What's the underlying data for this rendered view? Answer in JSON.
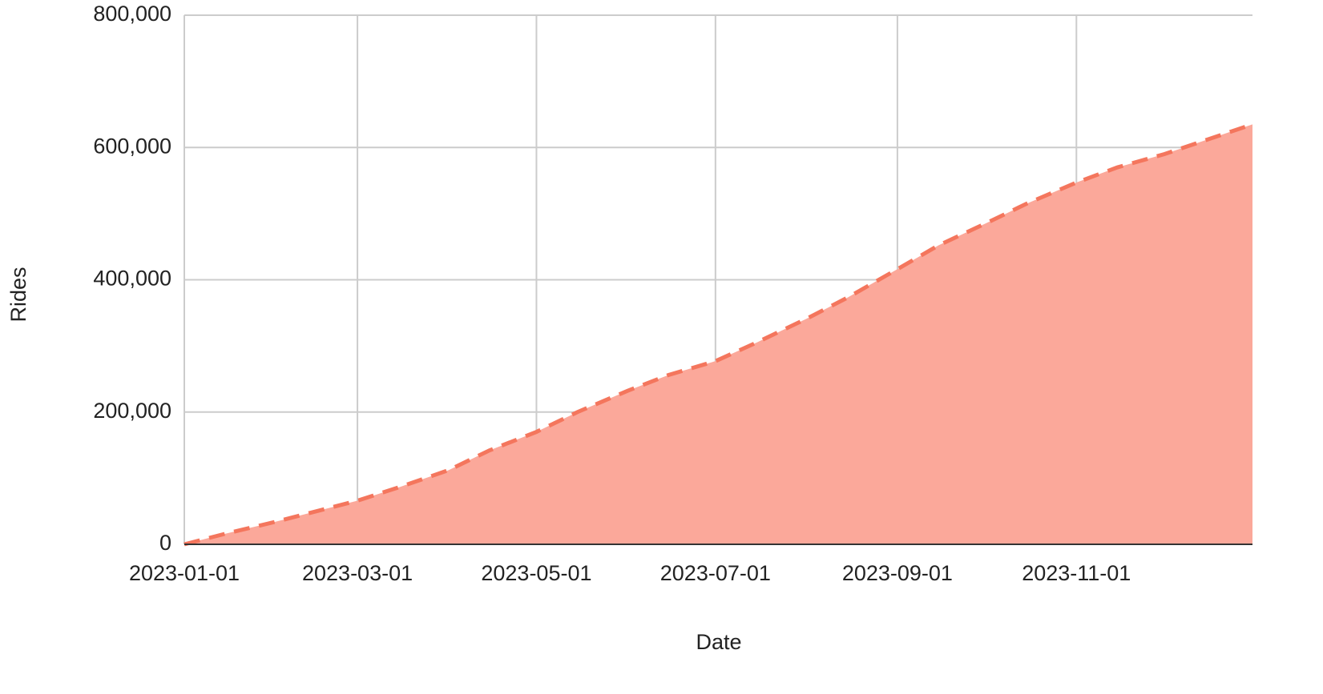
{
  "chart_data": {
    "type": "area",
    "x_label": "Date",
    "y_label": "Rides",
    "x": [
      "2023-01-01",
      "2023-01-15",
      "2023-02-01",
      "2023-03-01",
      "2023-03-15",
      "2023-04-01",
      "2023-04-15",
      "2023-05-01",
      "2023-05-15",
      "2023-06-01",
      "2023-06-15",
      "2023-07-01",
      "2023-07-15",
      "2023-08-01",
      "2023-08-15",
      "2023-09-01",
      "2023-09-15",
      "2023-10-01",
      "2023-10-15",
      "2023-11-01",
      "2023-11-15",
      "2023-12-01",
      "2023-12-15",
      "2023-12-31"
    ],
    "series": [
      {
        "name": "Rides",
        "color": "#f4765d",
        "fill": "#fba89a",
        "values": [
          0,
          16000,
          34000,
          66000,
          86000,
          112000,
          142000,
          170000,
          200000,
          232000,
          256000,
          277000,
          305000,
          341000,
          373000,
          416000,
          452000,
          485000,
          515000,
          547000,
          570000,
          590000,
          611000,
          635000
        ]
      }
    ],
    "xlim": [
      "2023-01-01",
      "2023-12-31"
    ],
    "xticks": [
      "2023-01-01",
      "2023-03-01",
      "2023-05-01",
      "2023-07-01",
      "2023-09-01",
      "2023-11-01"
    ],
    "ylim": [
      0,
      800000
    ],
    "yticks": [
      {
        "value": 0,
        "label": "0"
      },
      {
        "value": 200000,
        "label": "200,000"
      },
      {
        "value": 400000,
        "label": "400,000"
      },
      {
        "value": 600000,
        "label": "600,000"
      },
      {
        "value": 800000,
        "label": "800,000"
      }
    ],
    "grid": true,
    "line_style": "dashed"
  }
}
